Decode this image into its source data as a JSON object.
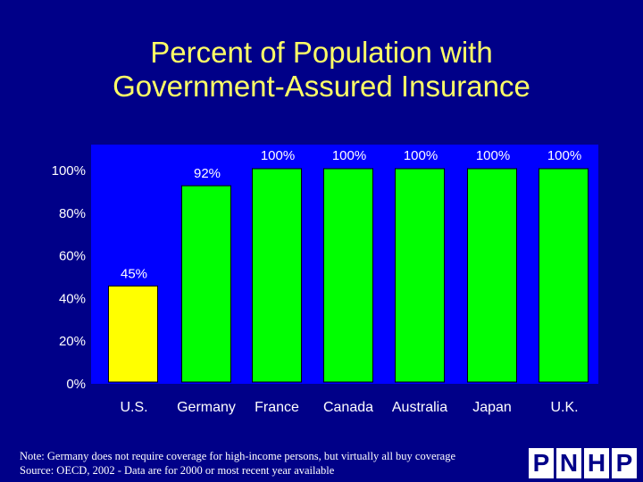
{
  "chart_data": {
    "type": "bar",
    "title_line1": "Percent of Population with",
    "title_line2": "Government-Assured Insurance",
    "categories": [
      "U.S.",
      "Germany",
      "France",
      "Canada",
      "Australia",
      "Japan",
      "U.K."
    ],
    "values": [
      45,
      92,
      100,
      100,
      100,
      100,
      100
    ],
    "data_labels": [
      "45%",
      "92%",
      "100%",
      "100%",
      "100%",
      "100%",
      "100%"
    ],
    "bar_colors": [
      "#FFFF00",
      "#00FF00",
      "#00FF00",
      "#00FF00",
      "#00FF00",
      "#00FF00",
      "#00FF00"
    ],
    "yticks": [
      "0%",
      "20%",
      "40%",
      "60%",
      "80%",
      "100%"
    ],
    "ylim": [
      0,
      100
    ],
    "xlabel": "",
    "ylabel": "",
    "grid": false,
    "plot_background": "#0000FF"
  },
  "page": {
    "background": "#000088",
    "title_color": "#FFFF66"
  },
  "footer": {
    "note_line1": "Note: Germany does not require coverage for high-income persons, but virtually all buy coverage",
    "note_line2": "Source: OECD, 2002 - Data are for 2000 or most recent year available",
    "logo_letters": [
      "P",
      "N",
      "H",
      "P"
    ]
  }
}
